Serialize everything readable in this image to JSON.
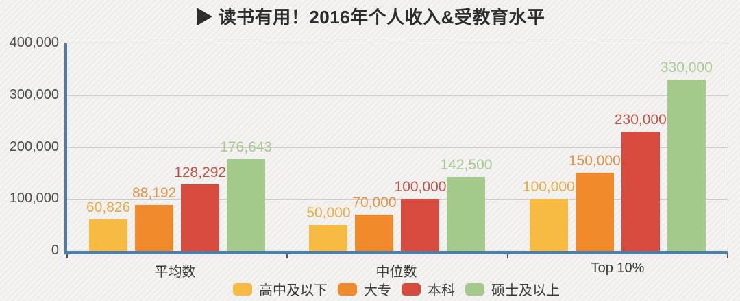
{
  "title": "▶ 读书有用！2016年个人收入&受教育水平",
  "colors": {
    "background": "#f1f0ee",
    "axis_blue": "#4d7ea9",
    "gridline": "#cccccc",
    "plot_border": "#c9c9c9",
    "ytick_label": "#4d4d4d",
    "category_label": "#3a3a3a",
    "title": "#2d2d2d",
    "legend_label": "#3a3a3a",
    "tick_mark": "#555555"
  },
  "chart_data": {
    "type": "bar",
    "title": "读书有用！2016年个人收入&受教育水平",
    "categories": [
      "平均数",
      "中位数",
      "Top 10%"
    ],
    "series": [
      {
        "name": "高中及以下",
        "color": "#f7ba42",
        "label_color": "#e7ab49",
        "values": [
          60826,
          50000,
          100000
        ],
        "labels": [
          "60,826",
          "50,000",
          "100,000"
        ]
      },
      {
        "name": "大专",
        "color": "#f08a2c",
        "label_color": "#e0934a",
        "values": [
          88192,
          70000,
          150000
        ],
        "labels": [
          "88,192",
          "70,000",
          "150,000"
        ]
      },
      {
        "name": "本科",
        "color": "#d64b3d",
        "label_color": "#c25147",
        "values": [
          128292,
          100000,
          230000
        ],
        "labels": [
          "128,292",
          "100,000",
          "230,000"
        ]
      },
      {
        "name": "硕士及以上",
        "color": "#a3c98b",
        "label_color": "#aac795",
        "values": [
          176643,
          142500,
          330000
        ],
        "labels": [
          "176,643",
          "142,500",
          "330,000"
        ]
      }
    ],
    "ylim": [
      0,
      400000
    ],
    "yticks": [
      {
        "value": 400000,
        "label": "400,000"
      },
      {
        "value": 300000,
        "label": "300,000"
      },
      {
        "value": 200000,
        "label": "200,000"
      },
      {
        "value": 100000,
        "label": "100,000"
      },
      {
        "value": 0,
        "label": "0"
      }
    ],
    "grid": true,
    "legend_position": "bottom"
  }
}
